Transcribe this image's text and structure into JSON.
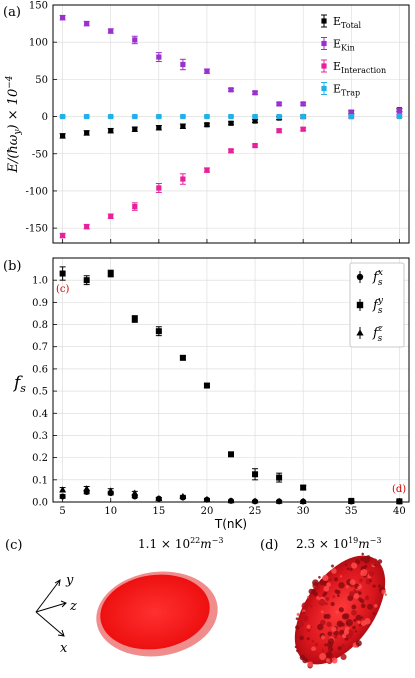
{
  "panel_labels": {
    "a": "(a)",
    "b": "(b)",
    "c": "(c)",
    "d": "(d)"
  },
  "corner_markers": {
    "c": "(c)",
    "d": "(d)"
  },
  "chart_data": [
    {
      "type": "scatter",
      "panel": "(a)",
      "ylabel": "E/(ħω_y) × 10^-4",
      "xlim": [
        4,
        41
      ],
      "ylim": [
        -170,
        150
      ],
      "yticks": [
        -150,
        -100,
        -50,
        0,
        50,
        100,
        150
      ],
      "xticks": [
        5,
        10,
        15,
        20,
        25,
        30,
        35,
        40
      ],
      "legend_position": "top-right",
      "series": [
        {
          "name": "E_Total",
          "legend_main": "E",
          "legend_sub": "Total",
          "color": "#000000",
          "x": [
            5,
            7.5,
            10,
            12.5,
            15,
            17.5,
            20,
            22.5,
            25,
            27.5,
            30,
            35,
            40
          ],
          "y": [
            -26,
            -22,
            -19,
            -17,
            -15,
            -13,
            -11,
            -9,
            -6,
            -2,
            0,
            6,
            9
          ],
          "err": [
            3,
            3,
            3,
            3,
            3,
            3,
            2,
            2,
            2,
            2,
            2,
            2,
            2
          ]
        },
        {
          "name": "E_Kin",
          "legend_main": "E",
          "legend_sub": "Kin",
          "color": "#9b30d0",
          "x": [
            5,
            7.5,
            10,
            12.5,
            15,
            17.5,
            20,
            22.5,
            25,
            27.5,
            30,
            35,
            40
          ],
          "y": [
            133,
            125,
            115,
            103,
            80,
            70,
            61,
            36,
            32,
            17,
            17,
            6,
            8
          ],
          "err": [
            3,
            3,
            3,
            5,
            6,
            7,
            3,
            2,
            2,
            2,
            2,
            2,
            2
          ]
        },
        {
          "name": "E_Interaction",
          "legend_main": "E",
          "legend_sub": "Interaction",
          "color": "#e8209b",
          "x": [
            5,
            7.5,
            10,
            12.5,
            15,
            17.5,
            20,
            22.5,
            25,
            27.5,
            30,
            35,
            40
          ],
          "y": [
            -160,
            -148,
            -134,
            -121,
            -96,
            -84,
            -72,
            -46,
            -39,
            -19,
            -17,
            0,
            1
          ],
          "err": [
            3,
            3,
            3,
            5,
            6,
            7,
            3,
            2,
            2,
            2,
            2,
            2,
            2
          ]
        },
        {
          "name": "E_Trap",
          "legend_main": "E",
          "legend_sub": "Trap",
          "color": "#22b0e8",
          "x": [
            5,
            7.5,
            10,
            12.5,
            15,
            17.5,
            20,
            22.5,
            25,
            27.5,
            30,
            35,
            40
          ],
          "y": [
            0,
            0,
            0,
            0,
            0,
            0,
            0,
            0,
            0,
            0,
            0,
            0,
            0
          ],
          "err": [
            1,
            1,
            1,
            1,
            1,
            1,
            1,
            1,
            1,
            1,
            1,
            1,
            1
          ]
        }
      ]
    },
    {
      "type": "scatter",
      "panel": "(b)",
      "xlabel": "T(nK)",
      "ylabel": "f_s",
      "xlim": [
        4,
        41
      ],
      "ylim": [
        0,
        1.1
      ],
      "yticks": [
        0,
        0.1,
        0.2,
        0.3,
        0.4,
        0.5,
        0.6,
        0.7,
        0.8,
        0.9,
        1.0
      ],
      "ytick_labels": [
        "0.0",
        "0.1",
        "0.2",
        "0.3",
        "0.4",
        "0.5",
        "0.6",
        "0.7",
        "0.8",
        "0.9",
        "1.0"
      ],
      "xticks": [
        5,
        10,
        15,
        20,
        25,
        30,
        35,
        40
      ],
      "legend_position": "top-right",
      "series": [
        {
          "name": "f_s^x",
          "marker": "circle",
          "x": [
            5,
            7.5,
            10,
            12.5,
            15,
            17.5,
            20,
            22.5,
            25,
            27.5,
            30,
            35,
            40
          ],
          "y": [
            0.025,
            0.045,
            0.04,
            0.025,
            0.015,
            0.02,
            0.01,
            0.005,
            0.003,
            0.003,
            0.002,
            0.002,
            0.002
          ],
          "err": [
            0.008,
            0.008,
            0.008,
            0.006,
            0.005,
            0.005,
            0.004,
            0.003,
            0.003,
            0.003,
            0.002,
            0.002,
            0.002
          ]
        },
        {
          "name": "f_s^y",
          "marker": "square",
          "x": [
            5,
            7.5,
            10,
            12.5,
            15,
            17.5,
            20,
            22.5,
            25,
            27.5,
            30,
            35,
            40
          ],
          "y": [
            1.03,
            1.0,
            1.03,
            0.825,
            0.77,
            0.65,
            0.525,
            0.215,
            0.125,
            0.11,
            0.065,
            0.005,
            0.003
          ],
          "err": [
            0.03,
            0.02,
            0.015,
            0.015,
            0.02,
            0.01,
            0.008,
            0.01,
            0.025,
            0.02,
            0.01,
            0.004,
            0.003
          ]
        },
        {
          "name": "f_s^z",
          "marker": "triangle",
          "x": [
            5,
            7.5,
            10,
            12.5,
            15,
            17.5,
            20,
            22.5,
            25,
            27.5,
            30,
            35,
            40
          ],
          "y": [
            0.055,
            0.06,
            0.05,
            0.04,
            0.015,
            0.025,
            0.012,
            0.005,
            0.004,
            0.003,
            0.002,
            0.002,
            0.002
          ],
          "err": [
            0.01,
            0.01,
            0.01,
            0.008,
            0.005,
            0.005,
            0.004,
            0.003,
            0.003,
            0.003,
            0.002,
            0.002,
            0.002
          ]
        }
      ]
    }
  ],
  "density_c": {
    "mantissa": "1.1",
    "times": "×",
    "base": "10",
    "exp": "22",
    "unit": "m",
    "unit_exp": "−3"
  },
  "density_d": {
    "mantissa": "2.3",
    "times": "×",
    "base": "10",
    "exp": "19",
    "unit": "m",
    "unit_exp": "−3"
  },
  "axes_triad": {
    "x": "x",
    "y": "y",
    "z": "z"
  },
  "colors": {
    "cloud_outer": "#f08c8c",
    "cloud_inner": "#ff2020",
    "cloud_d": "#c8141e",
    "grid": "#d9d9d9"
  }
}
